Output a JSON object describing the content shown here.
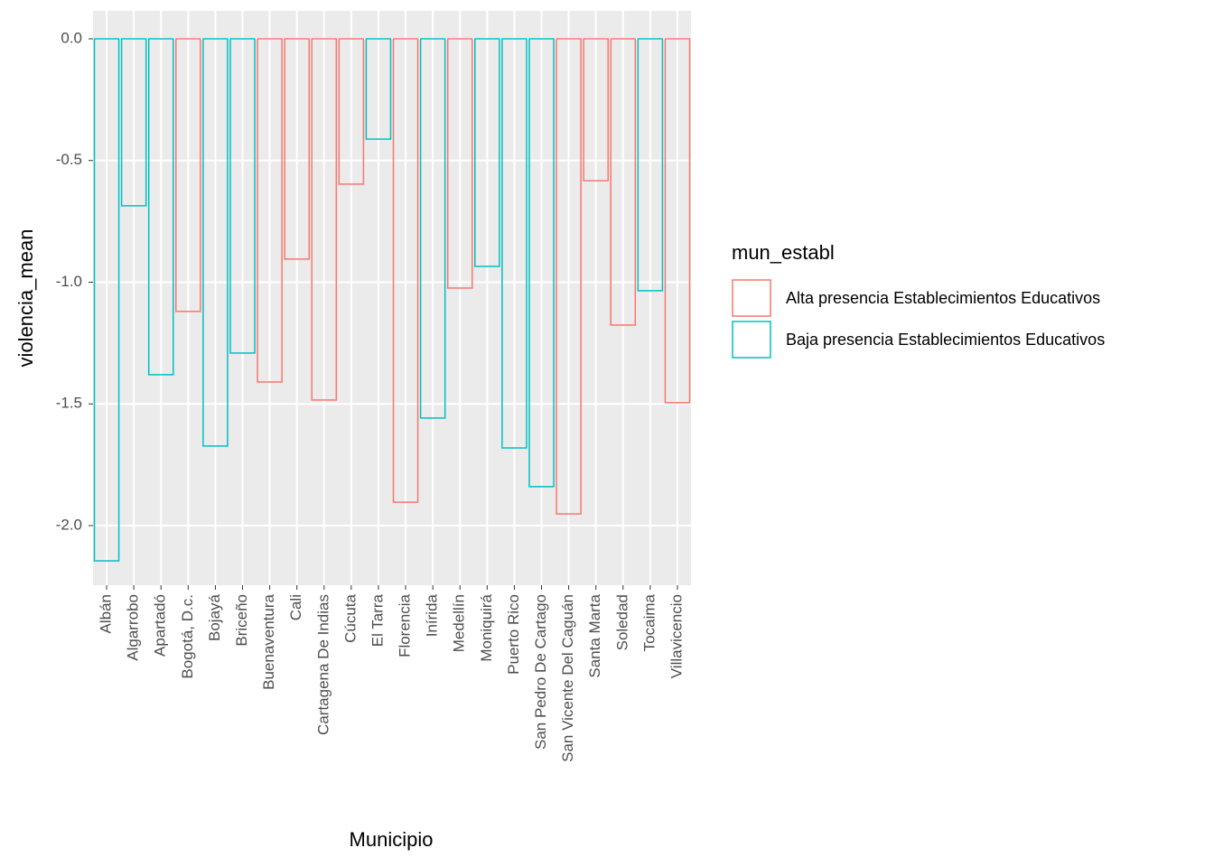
{
  "chart_data": {
    "type": "bar",
    "x_label": "Municipio",
    "y_label": "violencia_mean",
    "legend_title": "mun_establ",
    "categories": [
      "Albán",
      "Algarrobo",
      "Apartadó",
      "Bogotá, D.c.",
      "Bojayá",
      "Briceño",
      "Buenaventura",
      "Cali",
      "Cartagena De Indias",
      "Cúcuta",
      "El Tarra",
      "Florencia",
      "Inírida",
      "Medellín",
      "Moniquirá",
      "Puerto Rico",
      "San Pedro De Cartago",
      "San Vicente Del Caguán",
      "Santa Marta",
      "Soledad",
      "Tocaima",
      "Villavicencio"
    ],
    "series": [
      {
        "name": "Alta presencia Establecimientos Educativos",
        "color": "#F8766D",
        "values": [
          null,
          null,
          null,
          -1.12,
          null,
          null,
          -1.41,
          -0.905,
          -1.484,
          -0.597,
          null,
          -1.904,
          null,
          -1.024,
          null,
          null,
          null,
          -1.952,
          -0.583,
          -1.176,
          null,
          -1.495
        ]
      },
      {
        "name": "Baja presencia Establecimientos Educativos",
        "color": "#00BFC4",
        "values": [
          -2.145,
          -0.686,
          -1.38,
          null,
          -1.673,
          -1.291,
          null,
          null,
          null,
          null,
          -0.412,
          null,
          -1.558,
          null,
          -0.935,
          -1.681,
          -1.84,
          null,
          null,
          null,
          -1.035,
          null
        ]
      }
    ],
    "ylim": [
      -2.245,
      0.115
    ],
    "yticks": [
      {
        "value": 0,
        "label": "0.0"
      },
      -0.5,
      {
        "value": -1,
        "label": "-1.0"
      },
      -1.5,
      {
        "value": -2,
        "label": "-2.0"
      }
    ],
    "grid": true,
    "legend": "right"
  }
}
